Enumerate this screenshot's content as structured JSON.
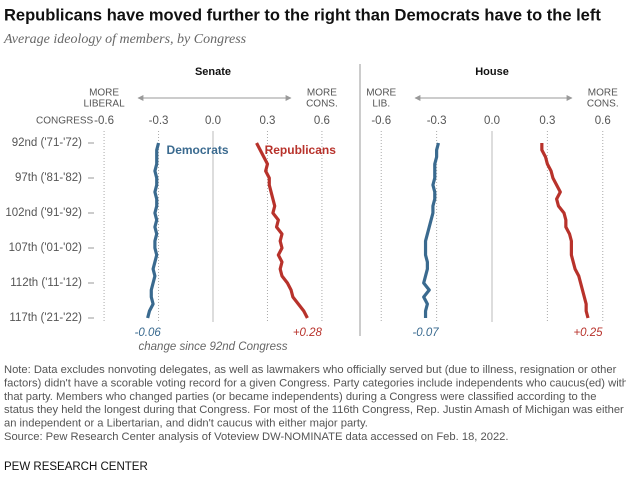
{
  "title": "Republicans have moved further to the right than Democrats have to the left",
  "subtitle": "Average ideology of members, by Congress",
  "category_header": "CONGRESS",
  "change_caption": "change since 92nd Congress",
  "note": [
    "Note: Data excludes nonvoting delegates, as well as lawmakers who officially served but (due to illness, resignation or other",
    "factors) didn't have a scorable voting record for a given Congress. Party categories include independents who caucus(ed) with",
    "that party. Members who changed parties (or became independents) during a Congress were classified according to the",
    "status they held the longest during that Congress. For most of the 116th Congress, Rep. Justin Amash of Michigan was either",
    "an independent or a Libertarian, and didn't caucus with either major party.",
    "Source: Pew Research Center analysis of Voteview DW-NOMINATE data accessed on Feb. 18, 2022."
  ],
  "footer": "PEW RESEARCH CENTER",
  "chart_data": [
    {
      "type": "line",
      "title": "Senate",
      "left_label": [
        "MORE",
        "LIBERAL"
      ],
      "right_label": [
        "MORE",
        "CONS."
      ],
      "categories": [
        "92nd ('71-'72)",
        null,
        null,
        null,
        null,
        "97th ('81-'82)",
        null,
        null,
        null,
        null,
        "102nd ('91-'92)",
        null,
        null,
        null,
        null,
        "107th ('01-'02)",
        null,
        null,
        null,
        null,
        "112th ('11-'12)",
        null,
        null,
        null,
        null,
        "117th ('21-'22)"
      ],
      "xlim": [
        -0.65,
        0.65
      ],
      "xticks": [
        -0.6,
        -0.3,
        {
          "value": 0,
          "label": "0.0"
        },
        0.3,
        0.6
      ],
      "change_labels": [
        "-0.06",
        "+0.28"
      ],
      "series": [
        {
          "name": "Democrats",
          "color": "#3a6a8f",
          "values": [
            -0.3,
            -0.31,
            -0.31,
            -0.31,
            -0.32,
            -0.31,
            -0.31,
            -0.32,
            -0.31,
            -0.31,
            -0.32,
            -0.31,
            -0.32,
            -0.31,
            -0.32,
            -0.32,
            -0.31,
            -0.32,
            -0.33,
            -0.32,
            -0.33,
            -0.34,
            -0.34,
            -0.33,
            -0.35,
            -0.36
          ]
        },
        {
          "name": "Republicans",
          "color": "#b8322b",
          "values": [
            0.24,
            0.26,
            0.28,
            0.3,
            0.29,
            0.31,
            0.31,
            0.32,
            0.33,
            0.34,
            0.33,
            0.36,
            0.35,
            0.38,
            0.37,
            0.38,
            0.36,
            0.38,
            0.37,
            0.38,
            0.41,
            0.43,
            0.44,
            0.47,
            0.5,
            0.52
          ]
        }
      ]
    },
    {
      "type": "line",
      "title": "House",
      "left_label": [
        "MORE",
        "LIB."
      ],
      "right_label": [
        "MORE",
        "CONS."
      ],
      "xlim": [
        -0.65,
        0.65
      ],
      "xticks": [
        -0.6,
        -0.3,
        {
          "value": 0,
          "label": "0.0"
        },
        0.3,
        0.6
      ],
      "change_labels": [
        "-0.07",
        "+0.25"
      ],
      "series": [
        {
          "color": "#3a6a8f",
          "values": [
            -0.29,
            -0.3,
            -0.3,
            -0.31,
            -0.31,
            -0.31,
            -0.32,
            -0.31,
            -0.31,
            -0.32,
            -0.32,
            -0.33,
            -0.34,
            -0.35,
            -0.36,
            -0.36,
            -0.36,
            -0.35,
            -0.35,
            -0.36,
            -0.37,
            -0.34,
            -0.37,
            -0.35,
            -0.36,
            -0.36
          ]
        },
        {
          "color": "#b8322b",
          "values": [
            0.27,
            0.27,
            0.29,
            0.3,
            0.32,
            0.33,
            0.35,
            0.37,
            0.35,
            0.36,
            0.39,
            0.4,
            0.4,
            0.42,
            0.43,
            0.43,
            0.43,
            0.44,
            0.45,
            0.47,
            0.48,
            0.49,
            0.5,
            0.51,
            0.51,
            0.52
          ]
        }
      ]
    }
  ]
}
